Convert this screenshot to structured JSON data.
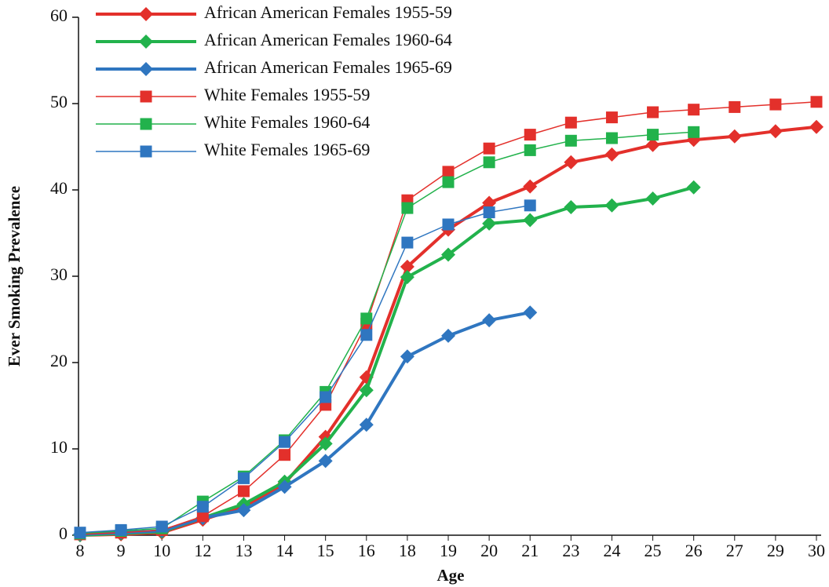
{
  "chart_data": {
    "type": "line",
    "x_label": "Age",
    "y_label": "Ever Smoking Prevalence",
    "categories": [
      "8",
      "9",
      "10",
      "12",
      "13",
      "14",
      "15",
      "16",
      "18",
      "19",
      "20",
      "21",
      "23",
      "24",
      "25",
      "26",
      "27",
      "29",
      "30"
    ],
    "ylim": [
      0,
      60
    ],
    "yticks": [
      0,
      10,
      20,
      30,
      40,
      50,
      60
    ],
    "series": [
      {
        "name": "African American Females 1955-59",
        "color": "#e3302b",
        "marker": "diamond",
        "linewidth": 4,
        "values": [
          0,
          0.1,
          0.3,
          1.8,
          3.3,
          6.0,
          11.4,
          18.3,
          31.1,
          35.4,
          38.5,
          40.4,
          43.2,
          44.1,
          45.2,
          45.8,
          46.2,
          46.8,
          47.3
        ]
      },
      {
        "name": "African American Females 1960-64",
        "color": "#22b24c",
        "marker": "diamond",
        "linewidth": 4,
        "values": [
          0,
          0.2,
          0.4,
          2.0,
          3.6,
          6.2,
          10.6,
          16.8,
          29.9,
          32.5,
          36.1,
          36.5,
          38.0,
          38.2,
          39.0,
          40.3,
          null,
          null,
          null
        ]
      },
      {
        "name": "African American Females 1965-69",
        "color": "#2f76c0",
        "marker": "diamond",
        "linewidth": 4,
        "values": [
          0.1,
          0.3,
          0.5,
          2.0,
          2.9,
          5.6,
          8.6,
          12.8,
          20.7,
          23.1,
          24.9,
          25.8,
          null,
          null,
          null,
          null,
          null,
          null,
          null
        ]
      },
      {
        "name": "White Females 1955-59",
        "color": "#e3302b",
        "marker": "square",
        "linewidth": 1.5,
        "values": [
          0.1,
          0.3,
          0.6,
          2.2,
          5.1,
          9.3,
          15.1,
          24.5,
          38.8,
          42.1,
          44.8,
          46.4,
          47.8,
          48.4,
          49.0,
          49.3,
          49.6,
          49.9,
          50.2
        ]
      },
      {
        "name": "White Females 1960-64",
        "color": "#22b24c",
        "marker": "square",
        "linewidth": 1.5,
        "values": [
          0.2,
          0.5,
          0.8,
          3.9,
          6.8,
          11.0,
          16.6,
          25.1,
          37.9,
          40.9,
          43.2,
          44.6,
          45.7,
          46.0,
          46.4,
          46.7,
          null,
          null,
          null
        ]
      },
      {
        "name": "White Females 1965-69",
        "color": "#2f76c0",
        "marker": "square",
        "linewidth": 1.5,
        "values": [
          0.3,
          0.6,
          1.0,
          3.3,
          6.6,
          10.8,
          16.0,
          23.2,
          33.9,
          36.0,
          37.4,
          38.2,
          null,
          null,
          null,
          null,
          null,
          null,
          null
        ]
      }
    ]
  }
}
